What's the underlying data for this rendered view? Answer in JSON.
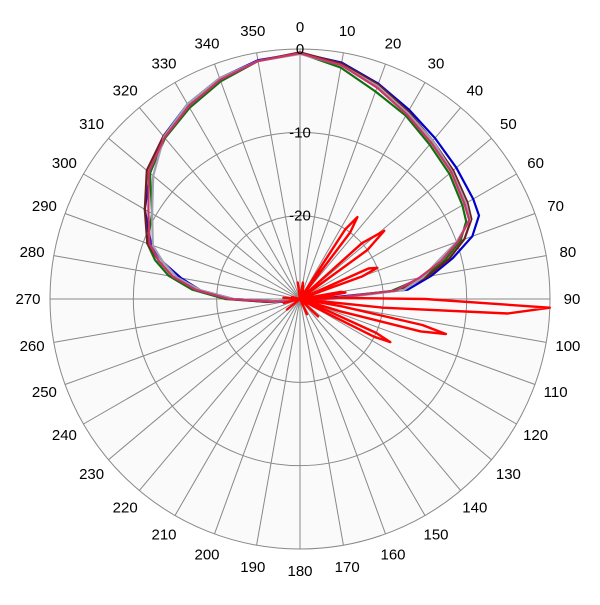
{
  "chart_data": {
    "type": "polar-line",
    "angle_ticks": [
      "0",
      "10",
      "20",
      "30",
      "40",
      "50",
      "60",
      "70",
      "80",
      "90",
      "100",
      "110",
      "120",
      "130",
      "140",
      "150",
      "160",
      "170",
      "180",
      "190",
      "200",
      "210",
      "220",
      "230",
      "240",
      "250",
      "260",
      "270",
      "280",
      "290",
      "300",
      "310",
      "320",
      "330",
      "340",
      "350"
    ],
    "radial_ticks": [
      "0",
      "-10",
      "-20"
    ],
    "r_range": [
      -30,
      0
    ],
    "angle_direction": "clockwise",
    "zero_angle": "top",
    "grid": true,
    "colors": {
      "background": "#fafafa",
      "grid": "#888888",
      "blue": "#0000cc",
      "green": "#107010",
      "brown": "#6b1f1f",
      "gray": "#a0a0b0",
      "pink": "#cc3366",
      "red": "#ff0000"
    },
    "series": [
      {
        "color": "blue",
        "values": [
          [
            0,
            -0.5
          ],
          [
            10,
            -1.2
          ],
          [
            20,
            -2.5
          ],
          [
            30,
            -3.8
          ],
          [
            40,
            -4.8
          ],
          [
            50,
            -5.5
          ],
          [
            60,
            -6
          ],
          [
            65,
            -6.3
          ],
          [
            70,
            -8
          ],
          [
            75,
            -11
          ],
          [
            80,
            -14
          ],
          [
            85,
            -17
          ],
          [
            90,
            -28
          ],
          [
            95,
            -28
          ],
          [
            100,
            -29
          ],
          [
            110,
            -30
          ],
          [
            180,
            -30
          ],
          [
            250,
            -30
          ],
          [
            260,
            -28
          ],
          [
            265,
            -27
          ],
          [
            270,
            -22
          ],
          [
            275,
            -18
          ],
          [
            280,
            -15.5
          ],
          [
            285,
            -13
          ],
          [
            290,
            -11
          ],
          [
            300,
            -8.5
          ],
          [
            310,
            -6.5
          ],
          [
            320,
            -4.5
          ],
          [
            330,
            -3
          ],
          [
            340,
            -1.8
          ],
          [
            350,
            -0.9
          ],
          [
            360,
            -0.5
          ]
        ]
      },
      {
        "color": "green",
        "values": [
          [
            0,
            -0.5
          ],
          [
            10,
            -1.8
          ],
          [
            20,
            -3.5
          ],
          [
            30,
            -4.6
          ],
          [
            40,
            -5.8
          ],
          [
            50,
            -6.6
          ],
          [
            60,
            -7.5
          ],
          [
            65,
            -8
          ],
          [
            70,
            -9.5
          ],
          [
            75,
            -12
          ],
          [
            80,
            -15
          ],
          [
            85,
            -19
          ],
          [
            90,
            -27
          ],
          [
            100,
            -30
          ],
          [
            180,
            -30
          ],
          [
            255,
            -30
          ],
          [
            260,
            -29
          ],
          [
            265,
            -26
          ],
          [
            270,
            -21
          ],
          [
            275,
            -17
          ],
          [
            280,
            -14
          ],
          [
            285,
            -12
          ],
          [
            290,
            -10.5
          ],
          [
            300,
            -9.5
          ],
          [
            310,
            -6.5
          ],
          [
            320,
            -4.8
          ],
          [
            330,
            -3.5
          ],
          [
            340,
            -2.2
          ],
          [
            350,
            -1
          ],
          [
            360,
            -0.5
          ]
        ]
      },
      {
        "color": "brown",
        "values": [
          [
            0,
            -0.4
          ],
          [
            10,
            -1.3
          ],
          [
            20,
            -2.6
          ],
          [
            30,
            -4
          ],
          [
            40,
            -5.2
          ],
          [
            50,
            -6
          ],
          [
            60,
            -6.8
          ],
          [
            65,
            -7.3
          ],
          [
            70,
            -9
          ],
          [
            75,
            -11.5
          ],
          [
            80,
            -14.5
          ],
          [
            85,
            -18
          ],
          [
            90,
            -27
          ],
          [
            100,
            -30
          ],
          [
            180,
            -30
          ],
          [
            255,
            -30
          ],
          [
            260,
            -28.5
          ],
          [
            265,
            -26
          ],
          [
            270,
            -21.5
          ],
          [
            275,
            -17.5
          ],
          [
            280,
            -14.5
          ],
          [
            285,
            -12.5
          ],
          [
            290,
            -10.5
          ],
          [
            300,
            -8.5
          ],
          [
            310,
            -6
          ],
          [
            320,
            -4.5
          ],
          [
            330,
            -3.2
          ],
          [
            340,
            -2
          ],
          [
            350,
            -1
          ],
          [
            360,
            -0.4
          ]
        ]
      },
      {
        "color": "gray",
        "values": [
          [
            0,
            -0.6
          ],
          [
            10,
            -1.5
          ],
          [
            20,
            -2.8
          ],
          [
            30,
            -4.2
          ],
          [
            40,
            -5.2
          ],
          [
            50,
            -6.2
          ],
          [
            60,
            -7
          ],
          [
            65,
            -7.5
          ],
          [
            70,
            -10
          ],
          [
            75,
            -13
          ],
          [
            80,
            -15
          ],
          [
            85,
            -17.5
          ],
          [
            90,
            -26
          ],
          [
            100,
            -30
          ],
          [
            180,
            -30
          ],
          [
            255,
            -30
          ],
          [
            260,
            -29
          ],
          [
            265,
            -27
          ],
          [
            270,
            -22
          ],
          [
            275,
            -18
          ],
          [
            280,
            -15
          ],
          [
            285,
            -13
          ],
          [
            290,
            -11.2
          ],
          [
            300,
            -9.5
          ],
          [
            310,
            -7
          ],
          [
            320,
            -4.6
          ],
          [
            330,
            -3
          ],
          [
            340,
            -1.8
          ],
          [
            350,
            -1
          ],
          [
            360,
            -0.6
          ]
        ]
      },
      {
        "color": "pink",
        "values": [
          [
            0,
            -0.5
          ],
          [
            10,
            -1.5
          ],
          [
            20,
            -3
          ],
          [
            30,
            -4.4
          ],
          [
            40,
            -5.5
          ],
          [
            50,
            -6.3
          ],
          [
            60,
            -7.2
          ],
          [
            65,
            -7.6
          ],
          [
            70,
            -9.8
          ],
          [
            75,
            -12.5
          ],
          [
            80,
            -15.5
          ],
          [
            85,
            -18.5
          ],
          [
            90,
            -27
          ],
          [
            100,
            -30
          ],
          [
            180,
            -30
          ],
          [
            255,
            -30
          ],
          [
            260,
            -28.5
          ],
          [
            265,
            -26.5
          ],
          [
            270,
            -21.5
          ],
          [
            275,
            -17.5
          ],
          [
            280,
            -14.5
          ],
          [
            285,
            -12.5
          ],
          [
            290,
            -10.8
          ],
          [
            300,
            -9
          ],
          [
            310,
            -6.3
          ],
          [
            320,
            -4.7
          ],
          [
            330,
            -3.3
          ],
          [
            340,
            -2
          ],
          [
            350,
            -1
          ],
          [
            360,
            -0.5
          ]
        ]
      },
      {
        "color": "red",
        "values": [
          [
            30,
            -30
          ],
          [
            33,
            -20
          ],
          [
            35,
            -18
          ],
          [
            37,
            -20
          ],
          [
            40,
            -30
          ],
          [
            43,
            -30
          ],
          [
            48,
            -20
          ],
          [
            51,
            -17
          ],
          [
            54,
            -20
          ],
          [
            57,
            -30
          ],
          [
            62,
            -30
          ],
          [
            66,
            -21
          ],
          [
            68,
            -20
          ],
          [
            70,
            -22
          ],
          [
            73,
            -30
          ],
          [
            76,
            -30
          ],
          [
            80,
            -25
          ],
          [
            82,
            -24.5
          ],
          [
            84,
            -27
          ],
          [
            86,
            -30
          ],
          [
            88,
            -26
          ],
          [
            90,
            -15
          ],
          [
            92,
            0
          ],
          [
            94,
            -5
          ],
          [
            96,
            -20
          ],
          [
            98,
            -30
          ],
          [
            100,
            -25
          ],
          [
            102,
            -15
          ],
          [
            103.5,
            -12
          ],
          [
            105,
            -15
          ],
          [
            107,
            -25
          ],
          [
            109,
            -30
          ],
          [
            112,
            -28
          ],
          [
            114,
            -20
          ],
          [
            115.5,
            -18
          ],
          [
            117,
            -20
          ],
          [
            119,
            -28
          ],
          [
            122,
            -30
          ],
          [
            128,
            -30
          ],
          [
            134,
            -27
          ],
          [
            138,
            -30
          ],
          [
            150,
            -30
          ],
          [
            155,
            -28
          ],
          [
            158,
            -30
          ],
          [
            180,
            -30
          ],
          [
            225,
            -30
          ],
          [
            231,
            -28
          ],
          [
            235,
            -30
          ],
          [
            250,
            -30
          ],
          [
            256,
            -28
          ],
          [
            262,
            -30
          ],
          [
            266,
            -29
          ],
          [
            270,
            -30
          ],
          [
            274,
            -28
          ],
          [
            278,
            -30
          ],
          [
            283,
            -29
          ],
          [
            288,
            -30
          ],
          [
            295,
            -30
          ],
          [
            340,
            -30
          ],
          [
            352,
            -28
          ],
          [
            360,
            -30
          ],
          [
            370,
            -28
          ],
          [
            380,
            -29
          ],
          [
            390,
            -30
          ]
        ]
      }
    ]
  }
}
